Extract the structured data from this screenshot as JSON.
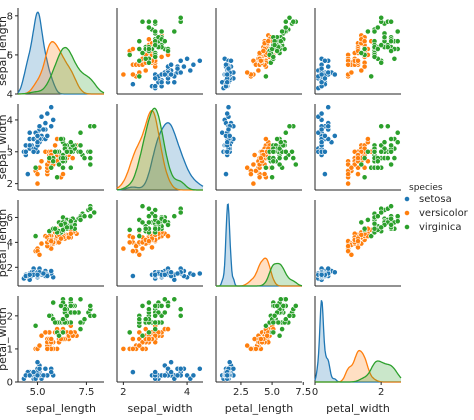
{
  "chart_data": {
    "type": "scatter",
    "variables": [
      "sepal_length",
      "sepal_width",
      "petal_length",
      "petal_width"
    ],
    "axis_ranges": {
      "sepal_length": [
        4.0,
        8.4
      ],
      "sepal_width": [
        1.8,
        4.5
      ],
      "petal_length": [
        0.5,
        7.4
      ],
      "petal_width": [
        0.0,
        2.6
      ]
    },
    "ticks": {
      "sepal_length": {
        "row": [
          "4",
          "6",
          "8"
        ],
        "col": [
          "5.0",
          "7.5"
        ]
      },
      "sepal_width": {
        "row": [
          "2",
          "3",
          "4"
        ],
        "col": [
          "2",
          "4"
        ]
      },
      "petal_length": {
        "row": [
          "2",
          "4",
          "6"
        ],
        "col": [
          "2.5",
          "5.0",
          "7.5"
        ]
      },
      "petal_width": {
        "row": [
          "0",
          "1",
          "2"
        ],
        "col": [
          "0",
          "2"
        ]
      }
    },
    "legend": {
      "title": "species",
      "placement": "right",
      "entries": [
        "setosa",
        "versicolor",
        "virginica"
      ]
    },
    "colors": {
      "setosa": "#1f77b4",
      "versicolor": "#ff7f0e",
      "virginica": "#2ca02c"
    },
    "grid": false,
    "diagonal": "kde",
    "series": [
      {
        "name": "setosa",
        "points": [
          [
            5.1,
            3.5,
            1.4,
            0.2
          ],
          [
            4.9,
            3.0,
            1.4,
            0.2
          ],
          [
            4.7,
            3.2,
            1.3,
            0.2
          ],
          [
            4.6,
            3.1,
            1.5,
            0.2
          ],
          [
            5.0,
            3.6,
            1.4,
            0.2
          ],
          [
            5.4,
            3.9,
            1.7,
            0.4
          ],
          [
            4.6,
            3.4,
            1.4,
            0.3
          ],
          [
            5.0,
            3.4,
            1.5,
            0.2
          ],
          [
            4.4,
            2.9,
            1.4,
            0.2
          ],
          [
            4.9,
            3.1,
            1.5,
            0.1
          ],
          [
            5.4,
            3.7,
            1.5,
            0.2
          ],
          [
            4.8,
            3.4,
            1.6,
            0.2
          ],
          [
            4.8,
            3.0,
            1.4,
            0.1
          ],
          [
            4.3,
            3.0,
            1.1,
            0.1
          ],
          [
            5.8,
            4.0,
            1.2,
            0.2
          ],
          [
            5.7,
            4.4,
            1.5,
            0.4
          ],
          [
            5.4,
            3.9,
            1.3,
            0.4
          ],
          [
            5.1,
            3.5,
            1.4,
            0.3
          ],
          [
            5.7,
            3.8,
            1.7,
            0.3
          ],
          [
            5.1,
            3.8,
            1.5,
            0.3
          ],
          [
            5.4,
            3.4,
            1.7,
            0.2
          ],
          [
            5.1,
            3.7,
            1.5,
            0.4
          ],
          [
            4.6,
            3.6,
            1.0,
            0.2
          ],
          [
            5.1,
            3.3,
            1.7,
            0.5
          ],
          [
            4.8,
            3.4,
            1.9,
            0.2
          ],
          [
            5.0,
            3.0,
            1.6,
            0.2
          ],
          [
            5.0,
            3.4,
            1.6,
            0.4
          ],
          [
            5.2,
            3.5,
            1.5,
            0.2
          ],
          [
            5.2,
            3.4,
            1.4,
            0.2
          ],
          [
            4.7,
            3.2,
            1.6,
            0.2
          ],
          [
            4.8,
            3.1,
            1.6,
            0.2
          ],
          [
            5.4,
            3.4,
            1.5,
            0.4
          ],
          [
            5.2,
            4.1,
            1.5,
            0.1
          ],
          [
            5.5,
            4.2,
            1.4,
            0.2
          ],
          [
            4.9,
            3.1,
            1.5,
            0.2
          ],
          [
            5.0,
            3.2,
            1.2,
            0.2
          ],
          [
            5.5,
            3.5,
            1.3,
            0.2
          ],
          [
            4.9,
            3.6,
            1.4,
            0.1
          ],
          [
            4.4,
            3.0,
            1.3,
            0.2
          ],
          [
            5.1,
            3.4,
            1.5,
            0.2
          ],
          [
            5.0,
            3.5,
            1.3,
            0.3
          ],
          [
            4.5,
            2.3,
            1.3,
            0.3
          ],
          [
            4.4,
            3.2,
            1.3,
            0.2
          ],
          [
            5.0,
            3.5,
            1.6,
            0.6
          ],
          [
            5.1,
            3.8,
            1.9,
            0.4
          ],
          [
            4.8,
            3.0,
            1.4,
            0.3
          ],
          [
            5.1,
            3.8,
            1.6,
            0.2
          ],
          [
            4.6,
            3.2,
            1.4,
            0.2
          ],
          [
            5.3,
            3.7,
            1.5,
            0.2
          ],
          [
            5.0,
            3.3,
            1.4,
            0.2
          ]
        ]
      },
      {
        "name": "versicolor",
        "points": [
          [
            7.0,
            3.2,
            4.7,
            1.4
          ],
          [
            6.4,
            3.2,
            4.5,
            1.5
          ],
          [
            6.9,
            3.1,
            4.9,
            1.5
          ],
          [
            5.5,
            2.3,
            4.0,
            1.3
          ],
          [
            6.5,
            2.8,
            4.6,
            1.5
          ],
          [
            5.7,
            2.8,
            4.5,
            1.3
          ],
          [
            6.3,
            3.3,
            4.7,
            1.6
          ],
          [
            4.9,
            2.4,
            3.3,
            1.0
          ],
          [
            6.6,
            2.9,
            4.6,
            1.3
          ],
          [
            5.2,
            2.7,
            3.9,
            1.4
          ],
          [
            5.0,
            2.0,
            3.5,
            1.0
          ],
          [
            5.9,
            3.0,
            4.2,
            1.5
          ],
          [
            6.0,
            2.2,
            4.0,
            1.0
          ],
          [
            6.1,
            2.9,
            4.7,
            1.4
          ],
          [
            5.6,
            2.9,
            3.6,
            1.3
          ],
          [
            6.7,
            3.1,
            4.4,
            1.4
          ],
          [
            5.6,
            3.0,
            4.5,
            1.5
          ],
          [
            5.8,
            2.7,
            4.1,
            1.0
          ],
          [
            6.2,
            2.2,
            4.5,
            1.5
          ],
          [
            5.6,
            2.5,
            3.9,
            1.1
          ],
          [
            5.9,
            3.2,
            4.8,
            1.8
          ],
          [
            6.1,
            2.8,
            4.0,
            1.3
          ],
          [
            6.3,
            2.5,
            4.9,
            1.5
          ],
          [
            6.1,
            2.8,
            4.7,
            1.2
          ],
          [
            6.4,
            2.9,
            4.3,
            1.3
          ],
          [
            6.6,
            3.0,
            4.4,
            1.4
          ],
          [
            6.8,
            2.8,
            4.8,
            1.4
          ],
          [
            6.7,
            3.0,
            5.0,
            1.7
          ],
          [
            6.0,
            2.9,
            4.5,
            1.5
          ],
          [
            5.7,
            2.6,
            3.5,
            1.0
          ],
          [
            5.5,
            2.4,
            3.8,
            1.1
          ],
          [
            5.5,
            2.4,
            3.7,
            1.0
          ],
          [
            5.8,
            2.7,
            3.9,
            1.2
          ],
          [
            6.0,
            2.7,
            5.1,
            1.6
          ],
          [
            5.4,
            3.0,
            4.5,
            1.5
          ],
          [
            6.0,
            3.4,
            4.5,
            1.6
          ],
          [
            6.7,
            3.1,
            4.7,
            1.5
          ],
          [
            6.3,
            2.3,
            4.4,
            1.3
          ],
          [
            5.6,
            3.0,
            4.1,
            1.3
          ],
          [
            5.5,
            2.5,
            4.0,
            1.3
          ],
          [
            5.5,
            2.6,
            4.4,
            1.2
          ],
          [
            6.1,
            3.0,
            4.6,
            1.4
          ],
          [
            5.8,
            2.6,
            4.0,
            1.2
          ],
          [
            5.0,
            2.3,
            3.3,
            1.0
          ],
          [
            5.6,
            2.7,
            4.2,
            1.3
          ],
          [
            5.7,
            3.0,
            4.2,
            1.2
          ],
          [
            5.7,
            2.9,
            4.2,
            1.3
          ],
          [
            6.2,
            2.9,
            4.3,
            1.3
          ],
          [
            5.1,
            2.5,
            3.0,
            1.1
          ],
          [
            5.7,
            2.8,
            4.1,
            1.3
          ]
        ]
      },
      {
        "name": "virginica",
        "points": [
          [
            6.3,
            3.3,
            6.0,
            2.5
          ],
          [
            5.8,
            2.7,
            5.1,
            1.9
          ],
          [
            7.1,
            3.0,
            5.9,
            2.1
          ],
          [
            6.3,
            2.9,
            5.6,
            1.8
          ],
          [
            6.5,
            3.0,
            5.8,
            2.2
          ],
          [
            7.6,
            3.0,
            6.6,
            2.1
          ],
          [
            4.9,
            2.5,
            4.5,
            1.7
          ],
          [
            7.3,
            2.9,
            6.3,
            1.8
          ],
          [
            6.7,
            2.5,
            5.8,
            1.8
          ],
          [
            7.2,
            3.6,
            6.1,
            2.5
          ],
          [
            6.5,
            3.2,
            5.1,
            2.0
          ],
          [
            6.4,
            2.7,
            5.3,
            1.9
          ],
          [
            6.8,
            3.0,
            5.5,
            2.1
          ],
          [
            5.7,
            2.5,
            5.0,
            2.0
          ],
          [
            5.8,
            2.8,
            5.1,
            2.4
          ],
          [
            6.4,
            3.2,
            5.3,
            2.3
          ],
          [
            6.5,
            3.0,
            5.5,
            1.8
          ],
          [
            7.7,
            3.8,
            6.7,
            2.2
          ],
          [
            7.7,
            2.6,
            6.9,
            2.3
          ],
          [
            6.0,
            2.2,
            5.0,
            1.5
          ],
          [
            6.9,
            3.2,
            5.7,
            2.3
          ],
          [
            5.6,
            2.8,
            4.9,
            2.0
          ],
          [
            7.7,
            2.8,
            6.7,
            2.0
          ],
          [
            6.3,
            2.7,
            4.9,
            1.8
          ],
          [
            6.7,
            3.3,
            5.7,
            2.1
          ],
          [
            7.2,
            3.2,
            6.0,
            1.8
          ],
          [
            6.2,
            2.8,
            4.8,
            1.8
          ],
          [
            6.1,
            3.0,
            4.9,
            1.8
          ],
          [
            6.4,
            2.8,
            5.6,
            2.1
          ],
          [
            7.2,
            3.0,
            5.8,
            1.6
          ],
          [
            7.4,
            2.8,
            6.1,
            1.9
          ],
          [
            7.9,
            3.8,
            6.4,
            2.0
          ],
          [
            6.4,
            2.8,
            5.6,
            2.2
          ],
          [
            6.3,
            2.8,
            5.1,
            1.5
          ],
          [
            6.1,
            2.6,
            5.6,
            1.4
          ],
          [
            7.7,
            3.0,
            6.1,
            2.3
          ],
          [
            6.3,
            3.4,
            5.6,
            2.4
          ],
          [
            6.4,
            3.1,
            5.5,
            1.8
          ],
          [
            6.0,
            3.0,
            4.8,
            1.8
          ],
          [
            6.9,
            3.1,
            5.4,
            2.1
          ],
          [
            6.7,
            3.1,
            5.6,
            2.4
          ],
          [
            6.9,
            3.1,
            5.1,
            2.3
          ],
          [
            5.8,
            2.7,
            5.1,
            1.9
          ],
          [
            6.8,
            3.2,
            5.9,
            2.3
          ],
          [
            6.7,
            3.3,
            5.7,
            2.5
          ],
          [
            6.7,
            3.0,
            5.2,
            2.3
          ],
          [
            6.3,
            2.5,
            5.0,
            1.9
          ],
          [
            6.5,
            3.0,
            5.2,
            2.0
          ],
          [
            6.2,
            3.4,
            5.4,
            2.3
          ],
          [
            5.9,
            3.0,
            5.1,
            1.8
          ]
        ]
      }
    ]
  }
}
